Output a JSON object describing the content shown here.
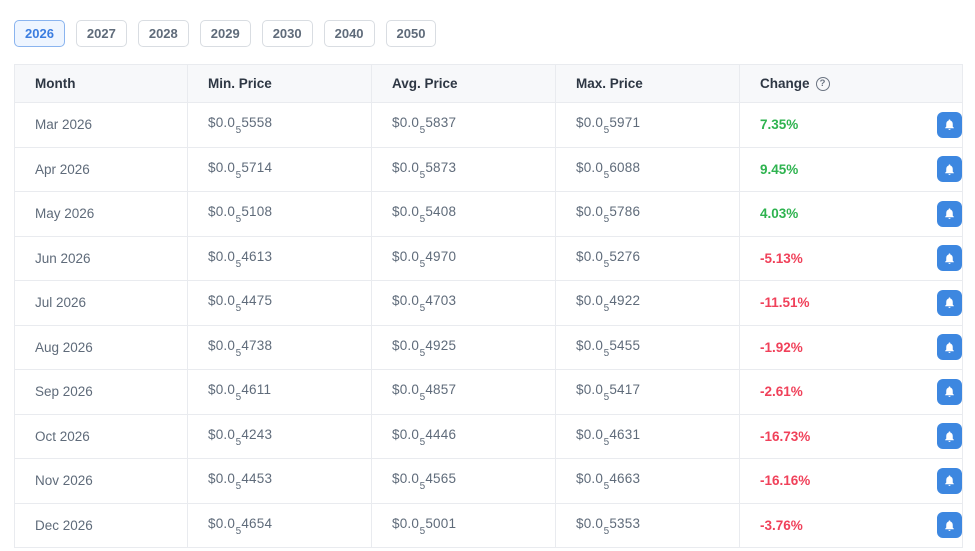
{
  "tabs": [
    {
      "label": "2026",
      "active": true
    },
    {
      "label": "2027",
      "active": false
    },
    {
      "label": "2028",
      "active": false
    },
    {
      "label": "2029",
      "active": false
    },
    {
      "label": "2030",
      "active": false
    },
    {
      "label": "2040",
      "active": false
    },
    {
      "label": "2050",
      "active": false
    }
  ],
  "table": {
    "headers": [
      "Month",
      "Min. Price",
      "Avg. Price",
      "Max. Price",
      "Change"
    ],
    "help_glyph": "?",
    "rows": [
      {
        "month": "Mar 2026",
        "min": {
          "prefix": "$0.0",
          "sub": "5",
          "digits": "5558"
        },
        "avg": {
          "prefix": "$0.0",
          "sub": "5",
          "digits": "5837"
        },
        "max": {
          "prefix": "$0.0",
          "sub": "5",
          "digits": "5971"
        },
        "change": "7.35%",
        "direction": "up"
      },
      {
        "month": "Apr 2026",
        "min": {
          "prefix": "$0.0",
          "sub": "5",
          "digits": "5714"
        },
        "avg": {
          "prefix": "$0.0",
          "sub": "5",
          "digits": "5873"
        },
        "max": {
          "prefix": "$0.0",
          "sub": "5",
          "digits": "6088"
        },
        "change": "9.45%",
        "direction": "up"
      },
      {
        "month": "May 2026",
        "min": {
          "prefix": "$0.0",
          "sub": "5",
          "digits": "5108"
        },
        "avg": {
          "prefix": "$0.0",
          "sub": "5",
          "digits": "5408"
        },
        "max": {
          "prefix": "$0.0",
          "sub": "5",
          "digits": "5786"
        },
        "change": "4.03%",
        "direction": "up"
      },
      {
        "month": "Jun 2026",
        "min": {
          "prefix": "$0.0",
          "sub": "5",
          "digits": "4613"
        },
        "avg": {
          "prefix": "$0.0",
          "sub": "5",
          "digits": "4970"
        },
        "max": {
          "prefix": "$0.0",
          "sub": "5",
          "digits": "5276"
        },
        "change": "-5.13%",
        "direction": "down"
      },
      {
        "month": "Jul 2026",
        "min": {
          "prefix": "$0.0",
          "sub": "5",
          "digits": "4475"
        },
        "avg": {
          "prefix": "$0.0",
          "sub": "5",
          "digits": "4703"
        },
        "max": {
          "prefix": "$0.0",
          "sub": "5",
          "digits": "4922"
        },
        "change": "-11.51%",
        "direction": "down"
      },
      {
        "month": "Aug 2026",
        "min": {
          "prefix": "$0.0",
          "sub": "5",
          "digits": "4738"
        },
        "avg": {
          "prefix": "$0.0",
          "sub": "5",
          "digits": "4925"
        },
        "max": {
          "prefix": "$0.0",
          "sub": "5",
          "digits": "5455"
        },
        "change": "-1.92%",
        "direction": "down"
      },
      {
        "month": "Sep 2026",
        "min": {
          "prefix": "$0.0",
          "sub": "5",
          "digits": "4611"
        },
        "avg": {
          "prefix": "$0.0",
          "sub": "5",
          "digits": "4857"
        },
        "max": {
          "prefix": "$0.0",
          "sub": "5",
          "digits": "5417"
        },
        "change": "-2.61%",
        "direction": "down"
      },
      {
        "month": "Oct 2026",
        "min": {
          "prefix": "$0.0",
          "sub": "5",
          "digits": "4243"
        },
        "avg": {
          "prefix": "$0.0",
          "sub": "5",
          "digits": "4446"
        },
        "max": {
          "prefix": "$0.0",
          "sub": "5",
          "digits": "4631"
        },
        "change": "-16.73%",
        "direction": "down"
      },
      {
        "month": "Nov 2026",
        "min": {
          "prefix": "$0.0",
          "sub": "5",
          "digits": "4453"
        },
        "avg": {
          "prefix": "$0.0",
          "sub": "5",
          "digits": "4565"
        },
        "max": {
          "prefix": "$0.0",
          "sub": "5",
          "digits": "4663"
        },
        "change": "-16.16%",
        "direction": "down"
      },
      {
        "month": "Dec 2026",
        "min": {
          "prefix": "$0.0",
          "sub": "5",
          "digits": "4654"
        },
        "avg": {
          "prefix": "$0.0",
          "sub": "5",
          "digits": "5001"
        },
        "max": {
          "prefix": "$0.0",
          "sub": "5",
          "digits": "5353"
        },
        "change": "-3.76%",
        "direction": "down"
      }
    ]
  },
  "colors": {
    "accent": "#3b7de0",
    "accent_border": "#8ab4ef",
    "accent_bg": "#eef5ff",
    "positive": "#2eb34f",
    "negative": "#f0415a",
    "bell": "#3d87e0"
  }
}
